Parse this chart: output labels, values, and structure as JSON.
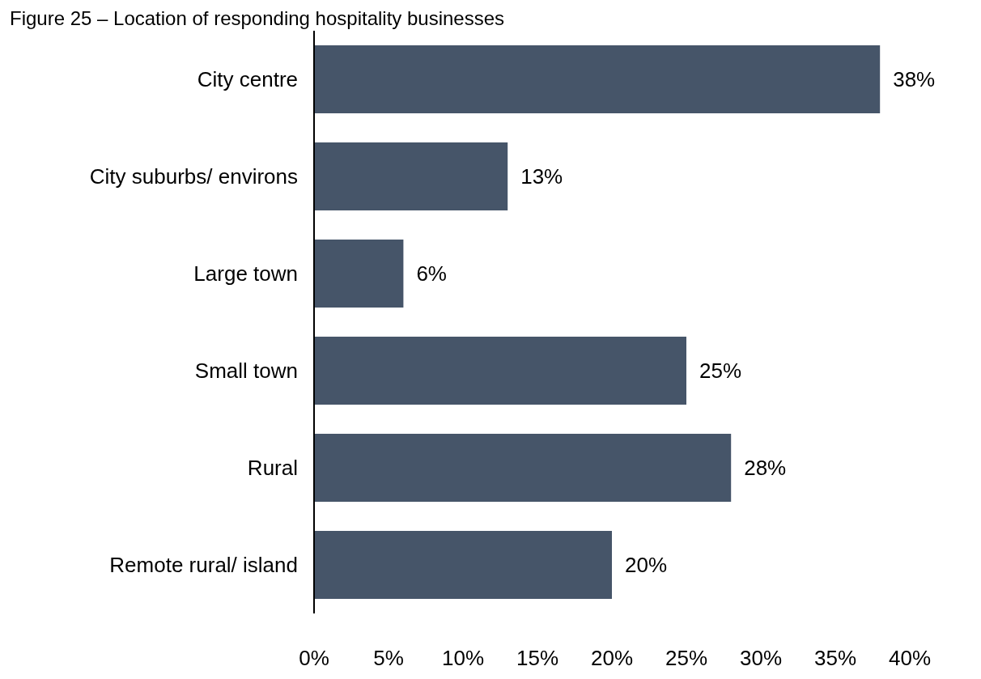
{
  "chart_data": {
    "type": "bar",
    "orientation": "horizontal",
    "title": "Figure 25 – Location of responding hospitality businesses",
    "categories": [
      "City centre",
      "City suburbs/ environs",
      "Large town",
      "Small town",
      "Rural",
      "Remote rural/ island"
    ],
    "values": [
      38,
      13,
      6,
      25,
      28,
      20
    ],
    "color": "#465569",
    "xlim": [
      0,
      40
    ],
    "xticks": [
      {
        "value": 0,
        "label": "0%"
      },
      {
        "value": 5,
        "label": "5%"
      },
      {
        "value": 10,
        "label": "10%"
      },
      {
        "value": 15,
        "label": "15%"
      },
      {
        "value": 20,
        "label": "20%"
      },
      {
        "value": 25,
        "label": "25%"
      },
      {
        "value": 30,
        "label": "30%"
      },
      {
        "value": 35,
        "label": "35%"
      },
      {
        "value": 40,
        "label": "40%"
      }
    ],
    "value_labels": [
      "38%",
      "13%",
      "6%",
      "25%",
      "28%",
      "20%"
    ],
    "grid": false,
    "legend": false
  }
}
